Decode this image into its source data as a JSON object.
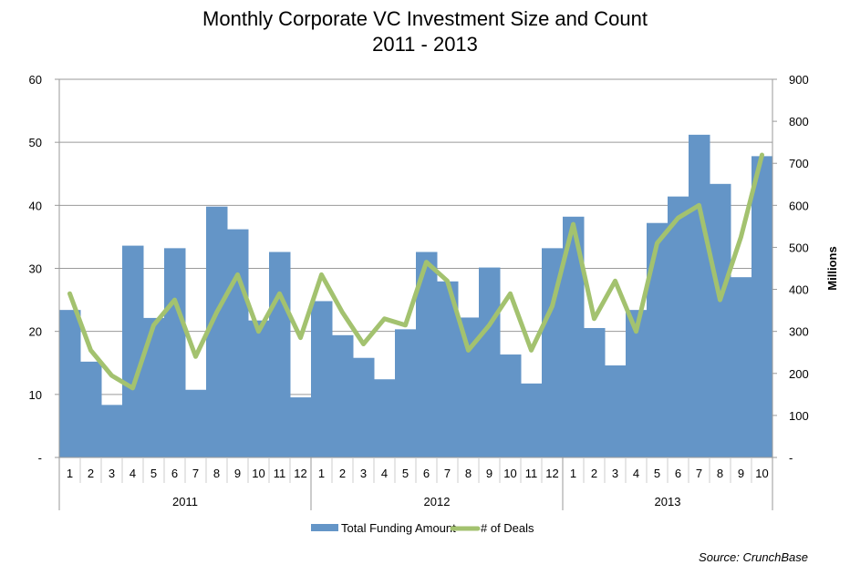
{
  "chart_data": {
    "type": "bar+line",
    "title": "Monthly Corporate VC Investment Size and Count",
    "subtitle": "2011 - 2013",
    "source": "Source: CrunchBase",
    "left_axis": {
      "label": "",
      "ticks": [
        "-",
        "10",
        "20",
        "30",
        "40",
        "50",
        "60"
      ],
      "range": [
        0,
        60
      ]
    },
    "right_axis": {
      "label": "Millions",
      "ticks": [
        "-",
        "100",
        "200",
        "300",
        "400",
        "500",
        "600",
        "700",
        "800",
        "900"
      ],
      "range": [
        0,
        900
      ]
    },
    "grid": true,
    "legend_position": "bottom",
    "groups": [
      {
        "label": "2011",
        "months": [
          "1",
          "2",
          "3",
          "4",
          "5",
          "6",
          "7",
          "8",
          "9",
          "10",
          "11",
          "12"
        ]
      },
      {
        "label": "2012",
        "months": [
          "1",
          "2",
          "3",
          "4",
          "5",
          "6",
          "7",
          "8",
          "9",
          "10",
          "11",
          "12"
        ]
      },
      {
        "label": "2013",
        "months": [
          "1",
          "2",
          "3",
          "4",
          "5",
          "6",
          "7",
          "8",
          "9",
          "10"
        ]
      }
    ],
    "series": [
      {
        "name": "Total Funding Amount",
        "kind": "bar",
        "axis": "right",
        "color": "#6495c7",
        "values": [
          351,
          228,
          125,
          504,
          332,
          498,
          161,
          597,
          543,
          326,
          489,
          143,
          372,
          291,
          237,
          186,
          305,
          489,
          419,
          333,
          452,
          245,
          176,
          498,
          573,
          308,
          219,
          351,
          558,
          621,
          768,
          651,
          429,
          717
        ]
      },
      {
        "name": "# of Deals",
        "kind": "line",
        "axis": "left",
        "color": "#a3c26f",
        "values": [
          26,
          17,
          13,
          11,
          21,
          25,
          16,
          23,
          29,
          20,
          26,
          19,
          29,
          23,
          18,
          22,
          21,
          31,
          28,
          17,
          21,
          26,
          17,
          24,
          37,
          22,
          28,
          20,
          34,
          38,
          40,
          25,
          35,
          48
        ]
      }
    ]
  }
}
